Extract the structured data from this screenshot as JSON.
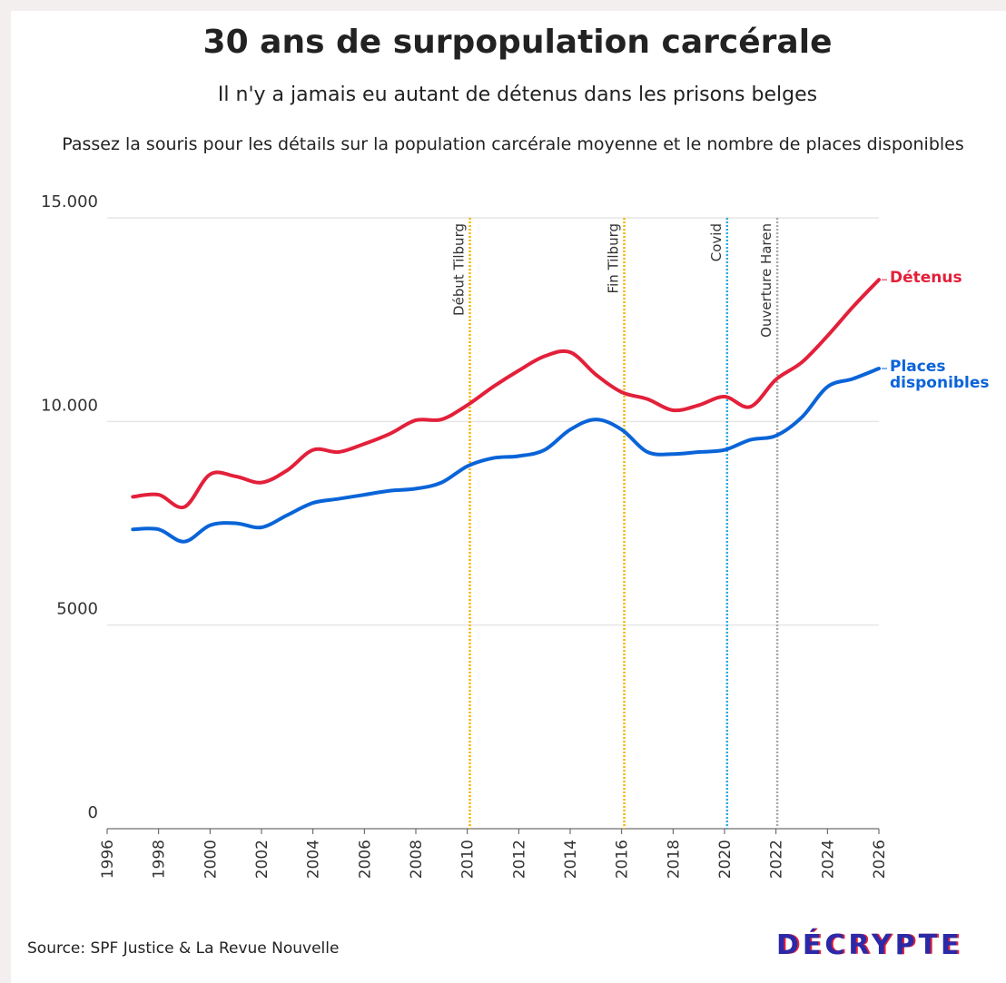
{
  "chart_data": {
    "type": "line",
    "title": "30 ans de surpopulation carcérale",
    "subtitle": "Il n'y a jamais eu autant de détenus dans les prisons belges",
    "instruction": "Passez la souris pour les détails sur la population carcérale moyenne et le nombre de places disponibles",
    "source": "Source: SPF Justice & La Revue Nouvelle",
    "logo": "DÉCRYPTE",
    "x": [
      1997,
      1998,
      1999,
      2000,
      2001,
      2002,
      2003,
      2004,
      2005,
      2006,
      2007,
      2008,
      2009,
      2010,
      2011,
      2012,
      2013,
      2014,
      2015,
      2016,
      2017,
      2018,
      2019,
      2020,
      2021,
      2022,
      2023,
      2024,
      2025,
      2026
    ],
    "series": [
      {
        "name": "Détenus",
        "color": "#e3203a",
        "values": [
          8150,
          8200,
          7900,
          8700,
          8650,
          8500,
          8800,
          9300,
          9250,
          9450,
          9700,
          10030,
          10050,
          10400,
          10850,
          11250,
          11600,
          11700,
          11150,
          10720,
          10550,
          10275,
          10400,
          10610,
          10360,
          11030,
          11450,
          12100,
          12820,
          13480
        ]
      },
      {
        "name": "Places disponibles",
        "color": "#0a64d8",
        "values": [
          7350,
          7350,
          7050,
          7450,
          7500,
          7400,
          7700,
          8000,
          8100,
          8200,
          8300,
          8350,
          8500,
          8900,
          9100,
          9150,
          9300,
          9800,
          10050,
          9800,
          9250,
          9200,
          9250,
          9300,
          9550,
          9650,
          10100,
          10850,
          11050,
          11300
        ]
      }
    ],
    "annotations": [
      {
        "label": "Début Tilburg",
        "x": 2010.1,
        "color": "#f5b400"
      },
      {
        "label": "Fin Tilburg",
        "x": 2016.1,
        "color": "#f5b400"
      },
      {
        "label": "Covid",
        "x": 2020.1,
        "color": "#2eaadc"
      },
      {
        "label": "Ouverture Haren",
        "x": 2022.05,
        "color": "#a8a8a8"
      }
    ],
    "xlim": [
      1996,
      2026
    ],
    "xticks": [
      1996,
      1998,
      2000,
      2002,
      2004,
      2006,
      2008,
      2010,
      2012,
      2014,
      2016,
      2018,
      2020,
      2022,
      2024,
      2026
    ],
    "ylim": [
      0,
      15000
    ],
    "yticks": [
      0,
      5000,
      {
        "value": 10000,
        "label": "10.000"
      },
      {
        "value": 15000,
        "label": "15.000"
      }
    ],
    "grid": true
  }
}
